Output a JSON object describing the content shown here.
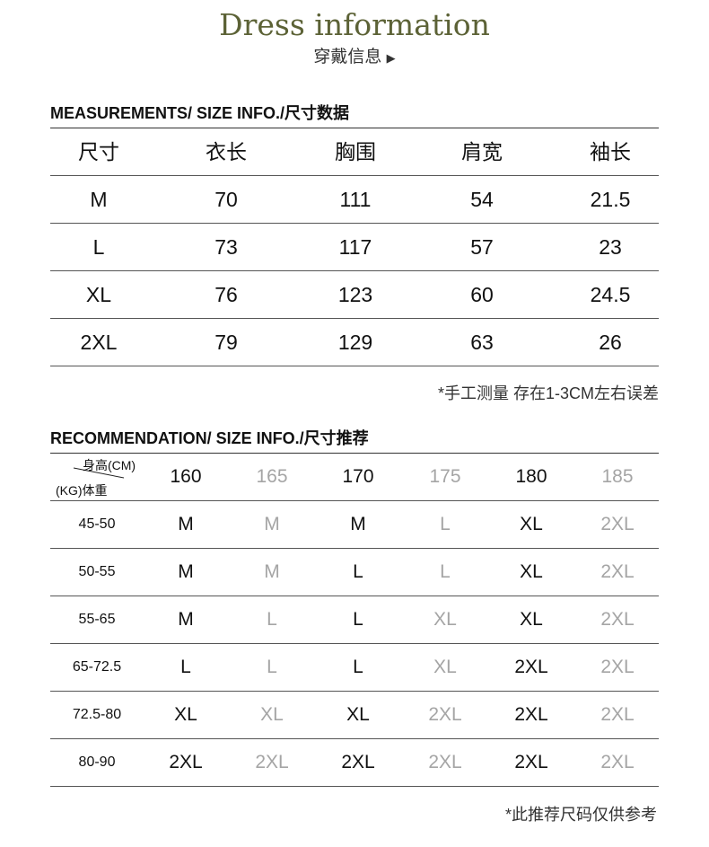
{
  "header": {
    "title": "Dress information",
    "subtitle": "穿戴信息",
    "arrow_icon": "triangle-right-icon"
  },
  "measurements": {
    "section_title": "MEASUREMENTS/ SIZE INFO./尺寸数据",
    "columns": [
      "尺寸",
      "衣长",
      "胸围",
      "肩宽",
      "袖长"
    ],
    "rows": [
      [
        "M",
        "70",
        "111",
        "54",
        "21.5"
      ],
      [
        "L",
        "73",
        "117",
        "57",
        "23"
      ],
      [
        "XL",
        "76",
        "123",
        "60",
        "24.5"
      ],
      [
        "2XL",
        "79",
        "129",
        "63",
        "26"
      ]
    ],
    "note": "*手工测量 存在1-3CM左右误差"
  },
  "recommendation": {
    "section_title": "RECOMMENDATION/ SIZE INFO./尺寸推荐",
    "corner_height_label": "身高(CM)",
    "corner_weight_label": "(KG)体重",
    "heights": [
      "160",
      "165",
      "170",
      "175",
      "180",
      "185"
    ],
    "rows": [
      {
        "weight": "45-50",
        "sizes": [
          "M",
          "M",
          "M",
          "L",
          "XL",
          "2XL"
        ]
      },
      {
        "weight": "50-55",
        "sizes": [
          "M",
          "M",
          "L",
          "L",
          "XL",
          "2XL"
        ]
      },
      {
        "weight": "55-65",
        "sizes": [
          "M",
          "L",
          "L",
          "XL",
          "XL",
          "2XL"
        ]
      },
      {
        "weight": "65-72.5",
        "sizes": [
          "L",
          "L",
          "L",
          "XL",
          "2XL",
          "2XL"
        ]
      },
      {
        "weight": "72.5-80",
        "sizes": [
          "XL",
          "XL",
          "XL",
          "2XL",
          "2XL",
          "2XL"
        ]
      },
      {
        "weight": "80-90",
        "sizes": [
          "2XL",
          "2XL",
          "2XL",
          "2XL",
          "2XL",
          "2XL"
        ]
      }
    ],
    "note": "*此推荐尺码仅供参考"
  },
  "colors": {
    "title": "#5c6236",
    "dim_text": "#a5a5a5"
  }
}
